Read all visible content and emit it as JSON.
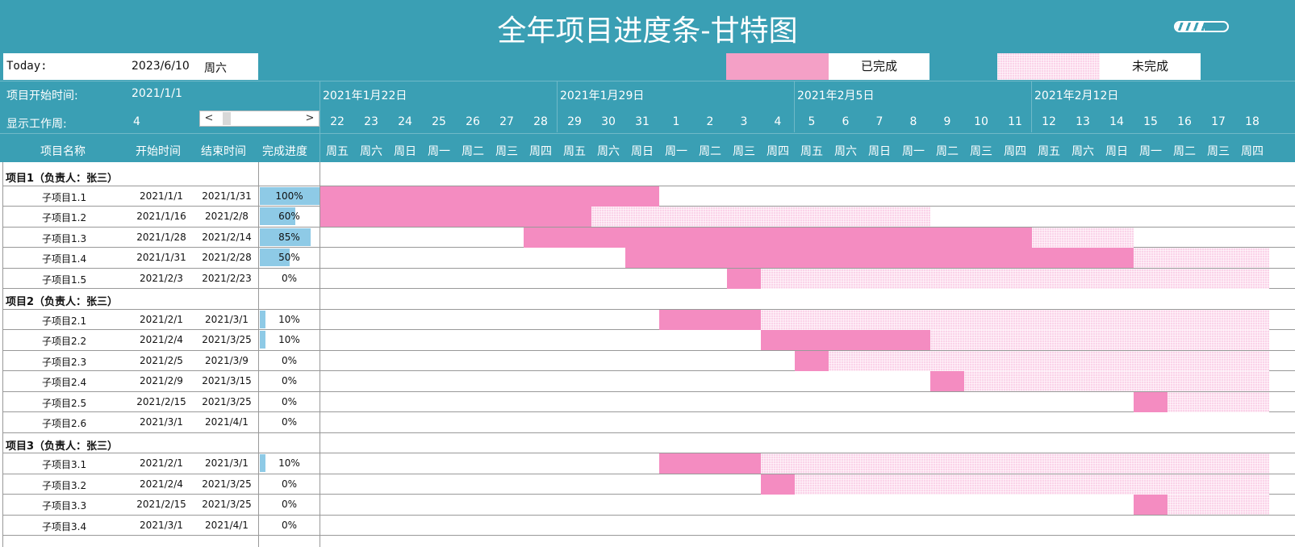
{
  "title": "全年项目进度条-甘特图",
  "today_label": "Today:",
  "today_value": "2023/6/10",
  "today_weekday": "周六",
  "legend": {
    "done": "已完成",
    "todo": "未完成"
  },
  "colors": {
    "header": "#3a9fb4",
    "done": "#f48cc1",
    "todo": "#fbd3e9",
    "progress": "#8ecae6"
  },
  "start_label": "项目开始时间:",
  "start_value": "2021/1/1",
  "week_label": "显示工作周:",
  "week_value": "4",
  "scroll": {
    "left": "<",
    "right": ">"
  },
  "columns": {
    "name": "项目名称",
    "start": "开始时间",
    "end": "结束时间",
    "progress": "完成进度"
  },
  "week_headers": [
    "2021年1月22日",
    "2021年1月29日",
    "2021年2月5日",
    "2021年2月12日"
  ],
  "days": [
    "22",
    "23",
    "24",
    "25",
    "26",
    "27",
    "28",
    "29",
    "30",
    "31",
    "1",
    "2",
    "3",
    "4",
    "5",
    "6",
    "7",
    "8",
    "9",
    "10",
    "11",
    "12",
    "13",
    "14",
    "15",
    "16",
    "17",
    "18"
  ],
  "weekdays": [
    "周五",
    "周六",
    "周日",
    "周一",
    "周二",
    "周三",
    "周四",
    "周五",
    "周六",
    "周日",
    "周一",
    "周二",
    "周三",
    "周四",
    "周五",
    "周六",
    "周日",
    "周一",
    "周二",
    "周三",
    "周四",
    "周五",
    "周六",
    "周日",
    "周一",
    "周二",
    "周三",
    "周四"
  ],
  "rows": [
    {
      "type": "group",
      "name": "项目1（负责人：张三）"
    },
    {
      "type": "task",
      "name": "子项目1.1",
      "start": "2021/1/1",
      "end": "2021/1/31",
      "pct": 100,
      "pct_text": "100%",
      "bar": [
        0,
        10,
        10
      ]
    },
    {
      "type": "task",
      "name": "子项目1.2",
      "start": "2021/1/16",
      "end": "2021/2/8",
      "pct": 60,
      "pct_text": "60%",
      "bar": [
        0,
        8,
        18
      ]
    },
    {
      "type": "task",
      "name": "子项目1.3",
      "start": "2021/1/28",
      "end": "2021/2/14",
      "pct": 85,
      "pct_text": "85%",
      "bar": [
        6,
        21,
        24
      ]
    },
    {
      "type": "task",
      "name": "子项目1.4",
      "start": "2021/1/31",
      "end": "2021/2/28",
      "pct": 50,
      "pct_text": "50%",
      "bar": [
        9,
        24,
        28
      ]
    },
    {
      "type": "task",
      "name": "子项目1.5",
      "start": "2021/2/3",
      "end": "2021/2/23",
      "pct": 0,
      "pct_text": "0%",
      "bar": [
        12,
        13,
        28
      ]
    },
    {
      "type": "group",
      "name": "项目2（负责人：张三）"
    },
    {
      "type": "task",
      "name": "子项目2.1",
      "start": "2021/2/1",
      "end": "2021/3/1",
      "pct": 10,
      "pct_text": "10%",
      "bar": [
        10,
        13,
        28
      ]
    },
    {
      "type": "task",
      "name": "子项目2.2",
      "start": "2021/2/4",
      "end": "2021/3/25",
      "pct": 10,
      "pct_text": "10%",
      "bar": [
        13,
        18,
        28
      ]
    },
    {
      "type": "task",
      "name": "子项目2.3",
      "start": "2021/2/5",
      "end": "2021/3/9",
      "pct": 0,
      "pct_text": "0%",
      "bar": [
        14,
        15,
        28
      ]
    },
    {
      "type": "task",
      "name": "子项目2.4",
      "start": "2021/2/9",
      "end": "2021/3/15",
      "pct": 0,
      "pct_text": "0%",
      "bar": [
        18,
        19,
        28
      ]
    },
    {
      "type": "task",
      "name": "子项目2.5",
      "start": "2021/2/15",
      "end": "2021/3/25",
      "pct": 0,
      "pct_text": "0%",
      "bar": [
        24,
        25,
        28
      ]
    },
    {
      "type": "task",
      "name": "子项目2.6",
      "start": "2021/3/1",
      "end": "2021/4/1",
      "pct": 0,
      "pct_text": "0%",
      "bar": null
    },
    {
      "type": "group",
      "name": "项目3（负责人：张三）"
    },
    {
      "type": "task",
      "name": "子项目3.1",
      "start": "2021/2/1",
      "end": "2021/3/1",
      "pct": 10,
      "pct_text": "10%",
      "bar": [
        10,
        13,
        28
      ]
    },
    {
      "type": "task",
      "name": "子项目3.2",
      "start": "2021/2/4",
      "end": "2021/3/25",
      "pct": 0,
      "pct_text": "0%",
      "bar": [
        13,
        14,
        28
      ]
    },
    {
      "type": "task",
      "name": "子项目3.3",
      "start": "2021/2/15",
      "end": "2021/3/25",
      "pct": 0,
      "pct_text": "0%",
      "bar": [
        24,
        25,
        28
      ]
    },
    {
      "type": "task",
      "name": "子项目3.4",
      "start": "2021/3/1",
      "end": "2021/4/1",
      "pct": 0,
      "pct_text": "0%",
      "bar": null
    }
  ]
}
